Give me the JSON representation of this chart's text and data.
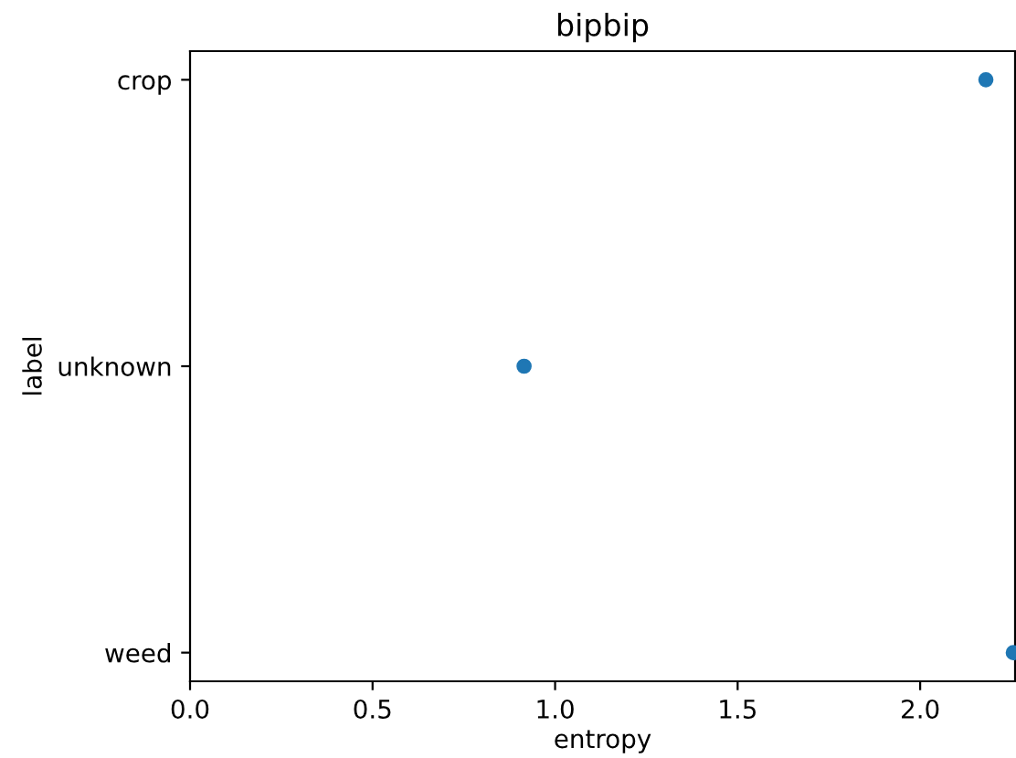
{
  "chart_data": {
    "type": "scatter",
    "title": "bipbip",
    "xlabel": "entropy",
    "ylabel": "label",
    "orientation": "horizontal",
    "categories": [
      "crop",
      "unknown",
      "weed"
    ],
    "series": [
      {
        "color": "#1f77b4",
        "values": [
          2.18,
          0.915,
          2.255
        ]
      }
    ],
    "xlim": [
      0,
      2.26
    ],
    "xticks": [
      {
        "value": 0,
        "label": "0.0"
      },
      {
        "value": 0.5,
        "label": "0.5"
      },
      {
        "value": 1,
        "label": "1.0"
      },
      {
        "value": 1.5,
        "label": "1.5"
      },
      {
        "value": 2,
        "label": "2.0"
      }
    ],
    "marker": "circle",
    "grid": false
  }
}
